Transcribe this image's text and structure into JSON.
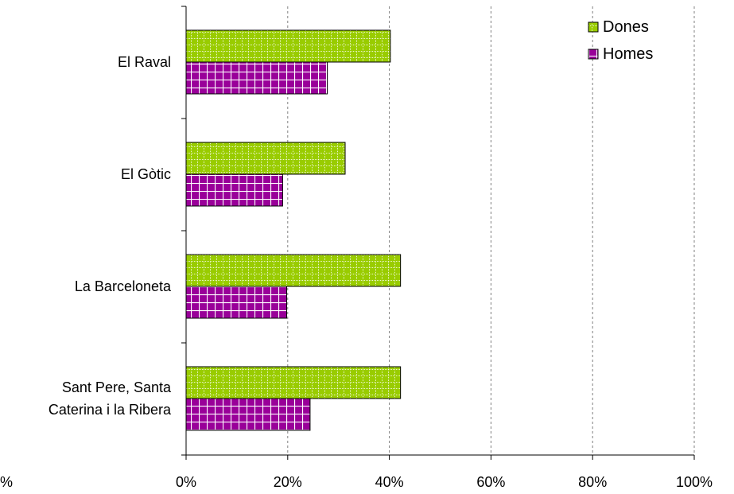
{
  "chart_data": {
    "type": "bar",
    "orientation": "horizontal",
    "categories": [
      [
        "El Raval"
      ],
      [
        "El Gòtic"
      ],
      [
        "La Barceloneta"
      ],
      [
        "Sant Pere, Santa",
        "Caterina i la Ribera"
      ]
    ],
    "series": [
      {
        "name": "Dones",
        "values": [
          40.2,
          31.3,
          42.2,
          42.2
        ],
        "color": "#99cc00",
        "pattern": "dotted-grid"
      },
      {
        "name": "Homes",
        "values": [
          27.8,
          19.0,
          19.8,
          24.4
        ],
        "color": "#990099",
        "pattern": "solid-grid"
      }
    ],
    "x_ticks": [
      "0%",
      "20%",
      "40%",
      "60%",
      "80%",
      "100%"
    ],
    "x_tick_values": [
      0,
      20,
      40,
      60,
      80,
      100
    ],
    "xlim": [
      0,
      100
    ],
    "stray_label": "%",
    "grid": "vertical-dashed",
    "legend": "top-right"
  }
}
